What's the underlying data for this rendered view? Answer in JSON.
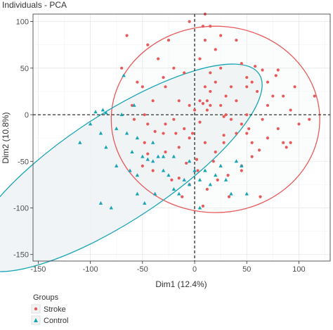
{
  "chart_data": {
    "type": "scatter",
    "title": "Individuals - PCA",
    "xlabel": "Dim1 (12.4%)",
    "ylabel": "Dim2 (10.8%)",
    "xlim": [
      -155,
      130
    ],
    "ylim": [
      -157,
      108
    ],
    "xticks": [
      -150,
      -100,
      -50,
      0,
      50,
      100
    ],
    "yticks": [
      -150,
      -100,
      -50,
      0,
      50,
      100
    ],
    "grid": true,
    "legend": {
      "title": "Groups",
      "position": "bottom-left",
      "entries": [
        "Stroke",
        "Control"
      ]
    },
    "colors": {
      "Stroke": "#e8595a",
      "Control": "#17a5b5",
      "ellipse_fill": "#eef3f5",
      "grid": "#e6e6e6",
      "reference_line": "#1a1a1a"
    },
    "series": [
      {
        "name": "Stroke",
        "marker": "circle",
        "ellipse": {
          "cx": 20,
          "cy": -5,
          "rx": 100,
          "ry": 100,
          "angle": -5
        },
        "points": [
          [
            -65,
            85
          ],
          [
            -45,
            75
          ],
          [
            -25,
            80
          ],
          [
            5,
            60
          ],
          [
            15,
            95
          ],
          [
            20,
            70
          ],
          [
            40,
            80
          ],
          [
            10,
            108
          ],
          [
            -5,
            100
          ],
          [
            -20,
            50
          ],
          [
            -10,
            45
          ],
          [
            25,
            50
          ],
          [
            45,
            55
          ],
          [
            55,
            35
          ],
          [
            58,
            52
          ],
          [
            70,
            35
          ],
          [
            80,
            48
          ],
          [
            60,
            25
          ],
          [
            75,
            20
          ],
          [
            85,
            20
          ],
          [
            92,
            5
          ],
          [
            96,
            30
          ],
          [
            110,
            -5
          ],
          [
            115,
            20
          ],
          [
            88,
            -35
          ],
          [
            92,
            -30
          ],
          [
            80,
            -15
          ],
          [
            85,
            -30
          ],
          [
            70,
            10
          ],
          [
            65,
            -5
          ],
          [
            50,
            0
          ],
          [
            40,
            15
          ],
          [
            35,
            30
          ],
          [
            30,
            20
          ],
          [
            20,
            35
          ],
          [
            10,
            30
          ],
          [
            15,
            25
          ],
          [
            5,
            15
          ],
          [
            8,
            12
          ],
          [
            0,
            5
          ],
          [
            -5,
            10
          ],
          [
            -15,
            15
          ],
          [
            -28,
            30
          ],
          [
            -40,
            15
          ],
          [
            -30,
            40
          ],
          [
            -50,
            30
          ],
          [
            -55,
            35
          ],
          [
            -45,
            -10
          ],
          [
            -48,
            0
          ],
          [
            -38,
            -18
          ],
          [
            -28,
            -10
          ],
          [
            -20,
            -5
          ],
          [
            -10,
            -15
          ],
          [
            -5,
            -25
          ],
          [
            -15,
            -35
          ],
          [
            -28,
            -40
          ],
          [
            -45,
            -42
          ],
          [
            -50,
            -55
          ],
          [
            -40,
            -60
          ],
          [
            -22,
            -70
          ],
          [
            -15,
            -68
          ],
          [
            -5,
            -75
          ],
          [
            3,
            -60
          ],
          [
            12,
            -80
          ],
          [
            22,
            -70
          ],
          [
            32,
            -65
          ],
          [
            45,
            -60
          ],
          [
            55,
            -45
          ],
          [
            62,
            -38
          ],
          [
            40,
            -20
          ],
          [
            28,
            -30
          ],
          [
            20,
            -40
          ],
          [
            10,
            -30
          ],
          [
            5,
            -8
          ],
          [
            -2,
            -20
          ],
          [
            15,
            10
          ],
          [
            12,
            5
          ],
          [
            30,
            0
          ],
          [
            35,
            -5
          ],
          [
            45,
            -10
          ],
          [
            50,
            -20
          ],
          [
            55,
            -30
          ],
          [
            -60,
            10
          ],
          [
            -70,
            50
          ],
          [
            -35,
            60
          ],
          [
            50,
            40
          ],
          [
            65,
            48
          ],
          [
            25,
            85
          ],
          [
            8,
            95
          ],
          [
            -30,
            -20
          ],
          [
            2,
            -48
          ],
          [
            18,
            -50
          ],
          [
            52,
            -15
          ],
          [
            70,
            -25
          ],
          [
            8,
            -98
          ],
          [
            -12,
            -88
          ],
          [
            33,
            -88
          ],
          [
            63,
            -88
          ],
          [
            -58,
            -5
          ],
          [
            15,
            45
          ],
          [
            -8,
            -52
          ],
          [
            78,
            42
          ],
          [
            100,
            -10
          ],
          [
            10,
            80
          ],
          [
            25,
            10
          ],
          [
            28,
            -22
          ],
          [
            45,
            -55
          ],
          [
            50,
            30
          ],
          [
            12,
            15
          ],
          [
            -18,
            -20
          ],
          [
            -48,
            -30
          ],
          [
            28,
            -2
          ]
        ]
      },
      {
        "name": "Control",
        "marker": "triangle",
        "ellipse": {
          "cx": -75,
          "cy": -57,
          "rx": 170,
          "ry": 55,
          "angle": 37
        },
        "points": [
          [
            -95,
            3
          ],
          [
            -90,
            -20
          ],
          [
            -85,
            2
          ],
          [
            -88,
            5
          ],
          [
            -65,
            -20
          ],
          [
            -70,
            0
          ],
          [
            -75,
            -15
          ],
          [
            -55,
            -25
          ],
          [
            -50,
            -45
          ],
          [
            -45,
            -48
          ],
          [
            -40,
            -50
          ],
          [
            -35,
            -45
          ],
          [
            -30,
            -45
          ],
          [
            -62,
            -60
          ],
          [
            -55,
            -65
          ],
          [
            -55,
            -85
          ],
          [
            -48,
            -95
          ],
          [
            -38,
            -85
          ],
          [
            -25,
            -65
          ],
          [
            -20,
            -80
          ],
          [
            -15,
            -85
          ],
          [
            -10,
            -70
          ],
          [
            -5,
            -75
          ],
          [
            0,
            -60
          ],
          [
            5,
            -70
          ],
          [
            15,
            -75
          ],
          [
            20,
            -65
          ],
          [
            25,
            -55
          ],
          [
            30,
            -70
          ],
          [
            35,
            -85
          ],
          [
            -68,
            42
          ],
          [
            -58,
            10
          ],
          [
            -5,
            -50
          ],
          [
            10,
            -60
          ],
          [
            -30,
            -60
          ],
          [
            40,
            -50
          ],
          [
            -75,
            -55
          ],
          [
            -60,
            -40
          ],
          [
            -90,
            -95
          ],
          [
            -80,
            -100
          ],
          [
            -110,
            -30
          ],
          [
            -100,
            -10
          ],
          [
            -85,
            -35
          ],
          [
            -40,
            -30
          ],
          [
            -20,
            -45
          ],
          [
            5,
            -100
          ],
          [
            45,
            -55
          ],
          [
            50,
            -85
          ]
        ]
      }
    ]
  }
}
